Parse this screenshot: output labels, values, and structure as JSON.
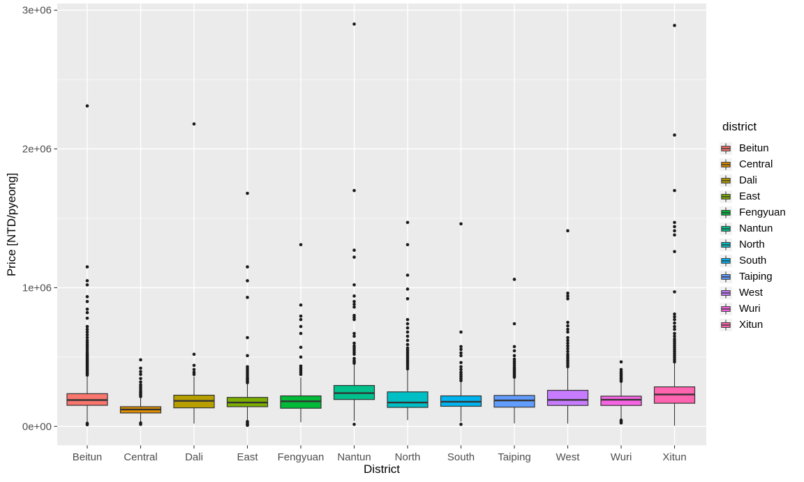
{
  "y_axis": {
    "title": "Price [NTD/pyeong]",
    "tick_labels": [
      "0e+00",
      "1e+06",
      "2e+06",
      "3e+06"
    ],
    "tick_values": [
      0,
      1000000,
      2000000,
      3000000
    ],
    "minor_values": [
      500000,
      1500000,
      2500000
    ]
  },
  "x_axis": {
    "title": "District"
  },
  "legend": {
    "title": "district",
    "entries": [
      {
        "label": "Beitun",
        "color": "#F8766D"
      },
      {
        "label": "Central",
        "color": "#DE8C00"
      },
      {
        "label": "Dali",
        "color": "#B79F00"
      },
      {
        "label": "East",
        "color": "#7CAE00"
      },
      {
        "label": "Fengyuan",
        "color": "#00BA38"
      },
      {
        "label": "Nantun",
        "color": "#00C08B"
      },
      {
        "label": "North",
        "color": "#00BFC4"
      },
      {
        "label": "South",
        "color": "#00B4F0"
      },
      {
        "label": "Taiping",
        "color": "#619CFF"
      },
      {
        "label": "West",
        "color": "#C77CFF"
      },
      {
        "label": "Wuri",
        "color": "#F564E3"
      },
      {
        "label": "Xitun",
        "color": "#FF64B0"
      }
    ]
  },
  "colors": {
    "panel_bg": "#EBEBEB",
    "grid": "#FFFFFF",
    "axis_text": "#4D4D4D",
    "title_text": "#000000",
    "box_stroke": "#333333",
    "outlier": "#1A1A1A",
    "legend_key_bg": "#F2F2F2"
  },
  "chart_data": {
    "type": "boxplot",
    "title": "",
    "xlabel": "District",
    "ylabel": "Price [NTD/pyeong]",
    "ylim": [
      -136000,
      3070000
    ],
    "grid": true,
    "legend_position": "right",
    "categories": [
      "Beitun",
      "Central",
      "Dali",
      "East",
      "Fengyuan",
      "Nantun",
      "North",
      "South",
      "Taiping",
      "West",
      "Wuri",
      "Xitun"
    ],
    "series": [
      {
        "name": "Beitun",
        "color": "#F8766D",
        "whisker_low": 30000,
        "q1": 152000,
        "median": 190000,
        "q3": 236000,
        "whisker_high": 360000,
        "outliers": [
          12000,
          22000,
          370000,
          380000,
          390000,
          400000,
          410000,
          420000,
          430000,
          440000,
          450000,
          460000,
          470000,
          480000,
          490000,
          500000,
          510000,
          520000,
          530000,
          545000,
          560000,
          575000,
          590000,
          605000,
          620000,
          640000,
          660000,
          680000,
          700000,
          720000,
          780000,
          820000,
          845000,
          900000,
          935000,
          1020000,
          1050000,
          1150000,
          2310000
        ]
      },
      {
        "name": "Central",
        "color": "#DE8C00",
        "whisker_low": 32000,
        "q1": 97000,
        "median": 122000,
        "q3": 142000,
        "whisker_high": 209000,
        "outliers": [
          15000,
          25000,
          215000,
          225000,
          235000,
          245000,
          255000,
          270000,
          285000,
          300000,
          320000,
          345000,
          375000,
          395000,
          420000,
          480000
        ]
      },
      {
        "name": "Dali",
        "color": "#B79F00",
        "whisker_low": 20000,
        "q1": 134000,
        "median": 184000,
        "q3": 225000,
        "whisker_high": 360000,
        "outliers": [
          375000,
          390000,
          410000,
          440000,
          520000,
          2180000
        ]
      },
      {
        "name": "East",
        "color": "#7CAE00",
        "whisker_low": 45000,
        "q1": 142000,
        "median": 172000,
        "q3": 209000,
        "whisker_high": 308000,
        "outliers": [
          8000,
          15000,
          25000,
          35000,
          315000,
          325000,
          335000,
          345000,
          355000,
          370000,
          385000,
          400000,
          415000,
          430000,
          510000,
          640000,
          930000,
          1050000,
          1150000,
          1680000
        ]
      },
      {
        "name": "Fengyuan",
        "color": "#00BA38",
        "whisker_low": 30000,
        "q1": 131000,
        "median": 181000,
        "q3": 220000,
        "whisker_high": 353000,
        "outliers": [
          375000,
          390000,
          405000,
          420000,
          435000,
          500000,
          570000,
          670000,
          720000,
          770000,
          795000,
          875000,
          1310000
        ]
      },
      {
        "name": "Nantun",
        "color": "#00C08B",
        "whisker_low": 40000,
        "q1": 194000,
        "median": 240000,
        "q3": 295000,
        "whisker_high": 448000,
        "outliers": [
          15000,
          455000,
          465000,
          475000,
          490000,
          520000,
          535000,
          550000,
          565000,
          580000,
          600000,
          650000,
          670000,
          770000,
          785000,
          800000,
          860000,
          880000,
          900000,
          940000,
          1020000,
          1220000,
          1270000,
          1700000,
          2900000
        ]
      },
      {
        "name": "North",
        "color": "#00BFC4",
        "whisker_low": 45000,
        "q1": 137000,
        "median": 172000,
        "q3": 249000,
        "whisker_high": 410000,
        "outliers": [
          415000,
          430000,
          445000,
          460000,
          475000,
          490000,
          505000,
          520000,
          535000,
          550000,
          565000,
          590000,
          620000,
          650000,
          680000,
          710000,
          740000,
          770000,
          920000,
          990000,
          1090000,
          1310000,
          1470000
        ]
      },
      {
        "name": "South",
        "color": "#00B4F0",
        "whisker_low": 35000,
        "q1": 145000,
        "median": 178000,
        "q3": 220000,
        "whisker_high": 323000,
        "outliers": [
          15000,
          330000,
          345000,
          360000,
          375000,
          390000,
          410000,
          430000,
          460000,
          510000,
          530000,
          555000,
          575000,
          680000,
          1460000
        ]
      },
      {
        "name": "Taiping",
        "color": "#619CFF",
        "whisker_low": 22000,
        "q1": 139000,
        "median": 187000,
        "q3": 223000,
        "whisker_high": 348000,
        "outliers": [
          355000,
          365000,
          375000,
          385000,
          395000,
          405000,
          415000,
          425000,
          440000,
          455000,
          470000,
          485000,
          510000,
          545000,
          575000,
          740000,
          1060000
        ]
      },
      {
        "name": "West",
        "color": "#C77CFF",
        "whisker_low": 20000,
        "q1": 151000,
        "median": 191000,
        "q3": 260000,
        "whisker_high": 423000,
        "outliers": [
          430000,
          445000,
          460000,
          475000,
          490000,
          505000,
          520000,
          540000,
          560000,
          580000,
          600000,
          620000,
          640000,
          680000,
          700000,
          725000,
          750000,
          920000,
          940000,
          960000,
          1410000
        ]
      },
      {
        "name": "Wuri",
        "color": "#F564E3",
        "whisker_low": 55000,
        "q1": 151000,
        "median": 192000,
        "q3": 218000,
        "whisker_high": 318000,
        "outliers": [
          25000,
          35000,
          45000,
          325000,
          335000,
          345000,
          355000,
          365000,
          375000,
          385000,
          395000,
          410000,
          465000
        ]
      },
      {
        "name": "Xitun",
        "color": "#FF64B0",
        "whisker_low": 5000,
        "q1": 167000,
        "median": 230000,
        "q3": 285000,
        "whisker_high": 460000,
        "outliers": [
          465000,
          480000,
          495000,
          510000,
          525000,
          540000,
          555000,
          570000,
          585000,
          600000,
          615000,
          630000,
          650000,
          670000,
          700000,
          720000,
          745000,
          770000,
          790000,
          810000,
          970000,
          1260000,
          1380000,
          1410000,
          1440000,
          1470000,
          1700000,
          2100000,
          2890000
        ]
      }
    ]
  }
}
